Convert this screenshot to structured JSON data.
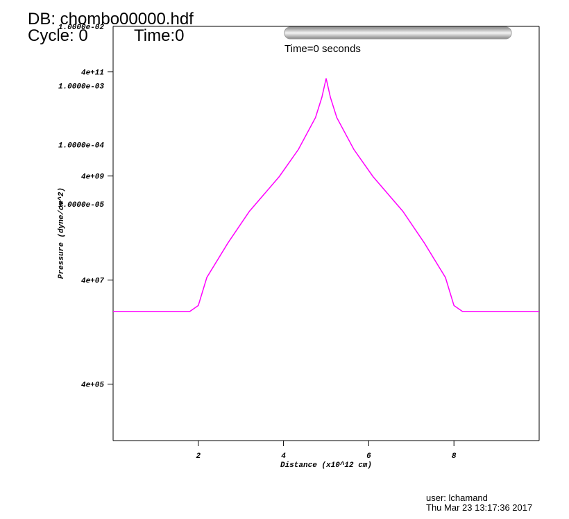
{
  "chart_data": {
    "type": "line",
    "database": "DB: chombo00000.hdf",
    "cycle": "Cycle: 0",
    "time": "Time:0",
    "time_slider_label": "Time=0 seconds",
    "xlabel": "Distance (x10^12 cm)",
    "ylabel": "Pressure (dyne/cm^2)",
    "user": "user: lchamand",
    "date": "Thu Mar 23 13:17:36 2017",
    "x": [
      0,
      1.8,
      2.0,
      2.2,
      2.7,
      3.2,
      3.9,
      4.35,
      4.75,
      4.9,
      5.0,
      5.1,
      5.25,
      5.65,
      6.1,
      6.8,
      7.3,
      7.8,
      8.0,
      8.2,
      10
    ],
    "values": [
      10000000.0,
      10000000.0,
      13000000.0,
      45000000.0,
      210000000.0,
      840000000.0,
      3900000000.0,
      13000000000.0,
      53000000000.0,
      130000000000.0,
      300000000000.0,
      130000000000.0,
      53000000000.0,
      13000000000.0,
      3900000000.0,
      840000000.0,
      210000000.0,
      45000000.0,
      13000000.0,
      10000000.0,
      10000000.0
    ],
    "color": "#ff00ff",
    "xlim": [
      0,
      10
    ],
    "xticks": [
      2,
      4,
      6,
      8
    ],
    "ylim": [
      33000,
      3000000000000.0
    ],
    "ylog": true,
    "yticks": [
      {
        "value": 400000000000.0,
        "label": "4e+11"
      },
      {
        "value": 4000000000.0,
        "label": "4e+09"
      },
      {
        "value": 40000000.0,
        "label": "4e+07"
      },
      {
        "value": 400000.0,
        "label": "4e+05"
      }
    ],
    "y2lim": [
      1e-09,
      0.01
    ],
    "y2ticks": [
      {
        "value": 0.01,
        "label": "1.0000e-02"
      },
      {
        "value": 0.001,
        "label": "1.0000e-03"
      },
      {
        "value": 0.0001,
        "label": "1.0000e-04"
      },
      {
        "value": 1e-05,
        "label": "1.0000e-05"
      }
    ]
  }
}
